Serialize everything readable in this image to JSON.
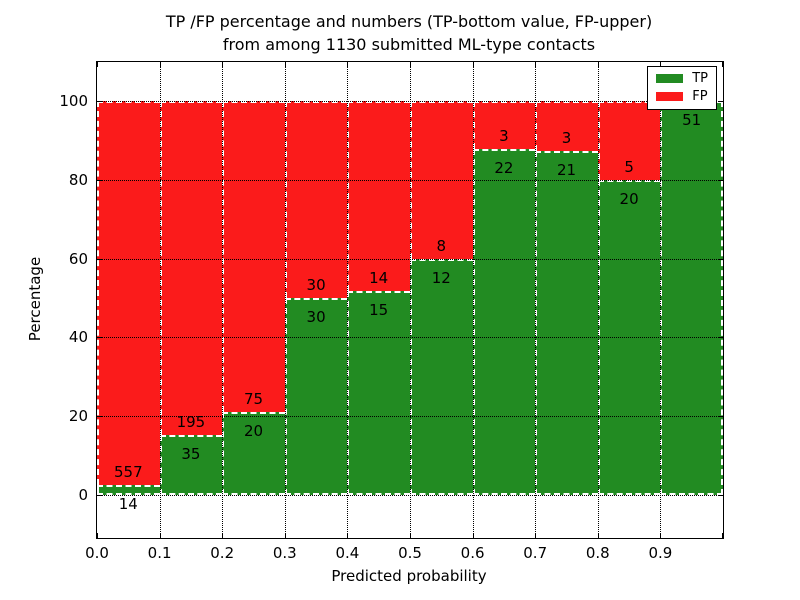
{
  "chart_data": {
    "type": "bar",
    "stacked": true,
    "unit": "percent",
    "title": "TP /FP percentage and numbers (TP-bottom value, FP-upper)\nfrom among 1130 submitted ML-type contacts",
    "xlabel": "Predicted probability",
    "ylabel": "Percentage",
    "total_contacts": 1130,
    "categories": [
      "0.0-0.1",
      "0.1-0.2",
      "0.2-0.3",
      "0.3-0.4",
      "0.4-0.5",
      "0.5-0.6",
      "0.6-0.7",
      "0.7-0.8",
      "0.8-0.9",
      "0.9-1.0"
    ],
    "series": [
      {
        "name": "TP",
        "color": "#228b22",
        "values": [
          14,
          35,
          20,
          30,
          15,
          12,
          22,
          21,
          20,
          51
        ]
      },
      {
        "name": "FP",
        "color": "#fb1b1b",
        "values": [
          557,
          195,
          75,
          30,
          14,
          8,
          3,
          3,
          5,
          0
        ]
      }
    ],
    "tp_percentages": [
      2.45,
      15.22,
      21.05,
      50.0,
      51.72,
      60.0,
      88.0,
      87.5,
      80.0,
      100.0
    ],
    "x_ticks": [
      "0.0",
      "0.1",
      "0.2",
      "0.3",
      "0.4",
      "0.5",
      "0.6",
      "0.7",
      "0.8",
      "0.9"
    ],
    "y_ticks": [
      0,
      20,
      40,
      60,
      80,
      100
    ],
    "xlim": [
      0.0,
      1.0
    ],
    "ylim": [
      -11,
      110
    ],
    "grid": "dotted",
    "bar_edge": {
      "color": "#ffffff",
      "style": "dashed"
    },
    "legend": {
      "position": "upper right",
      "entries": [
        {
          "label": "TP",
          "color": "#228b22"
        },
        {
          "label": "FP",
          "color": "#fb1b1b"
        }
      ]
    }
  }
}
